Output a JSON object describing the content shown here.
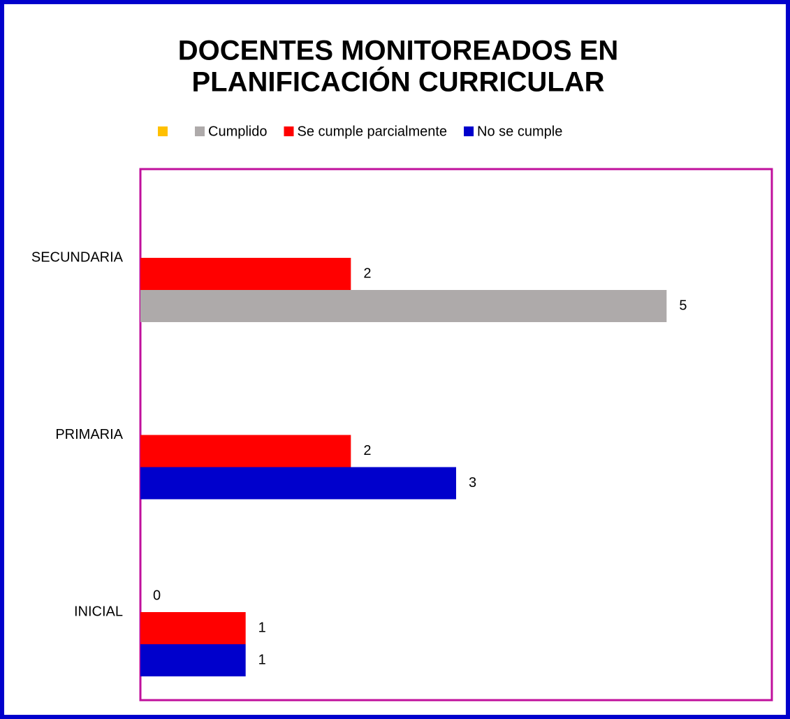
{
  "chart_data": {
    "type": "hbar",
    "title": [
      "DOCENTES MONITOREADOS EN",
      "PLANIFICACIÓN CURRICULAR"
    ],
    "categories": [
      "INICIAL",
      "PRIMARIA",
      "SECUNDARIA"
    ],
    "series": [
      {
        "color": "#ffc000",
        "values": [
          0,
          null,
          null
        ]
      },
      {
        "name": "Cumplido",
        "color": "#aeaaaa",
        "values": [
          null,
          null,
          5
        ]
      },
      {
        "name": "Se cumple parcialmente",
        "color": "#ff0000",
        "values": [
          1,
          2,
          2
        ]
      },
      {
        "name": "No se cumple",
        "color": "#0000cc",
        "values": [
          1,
          3,
          null
        ]
      }
    ],
    "xlim": [
      0,
      6
    ]
  }
}
